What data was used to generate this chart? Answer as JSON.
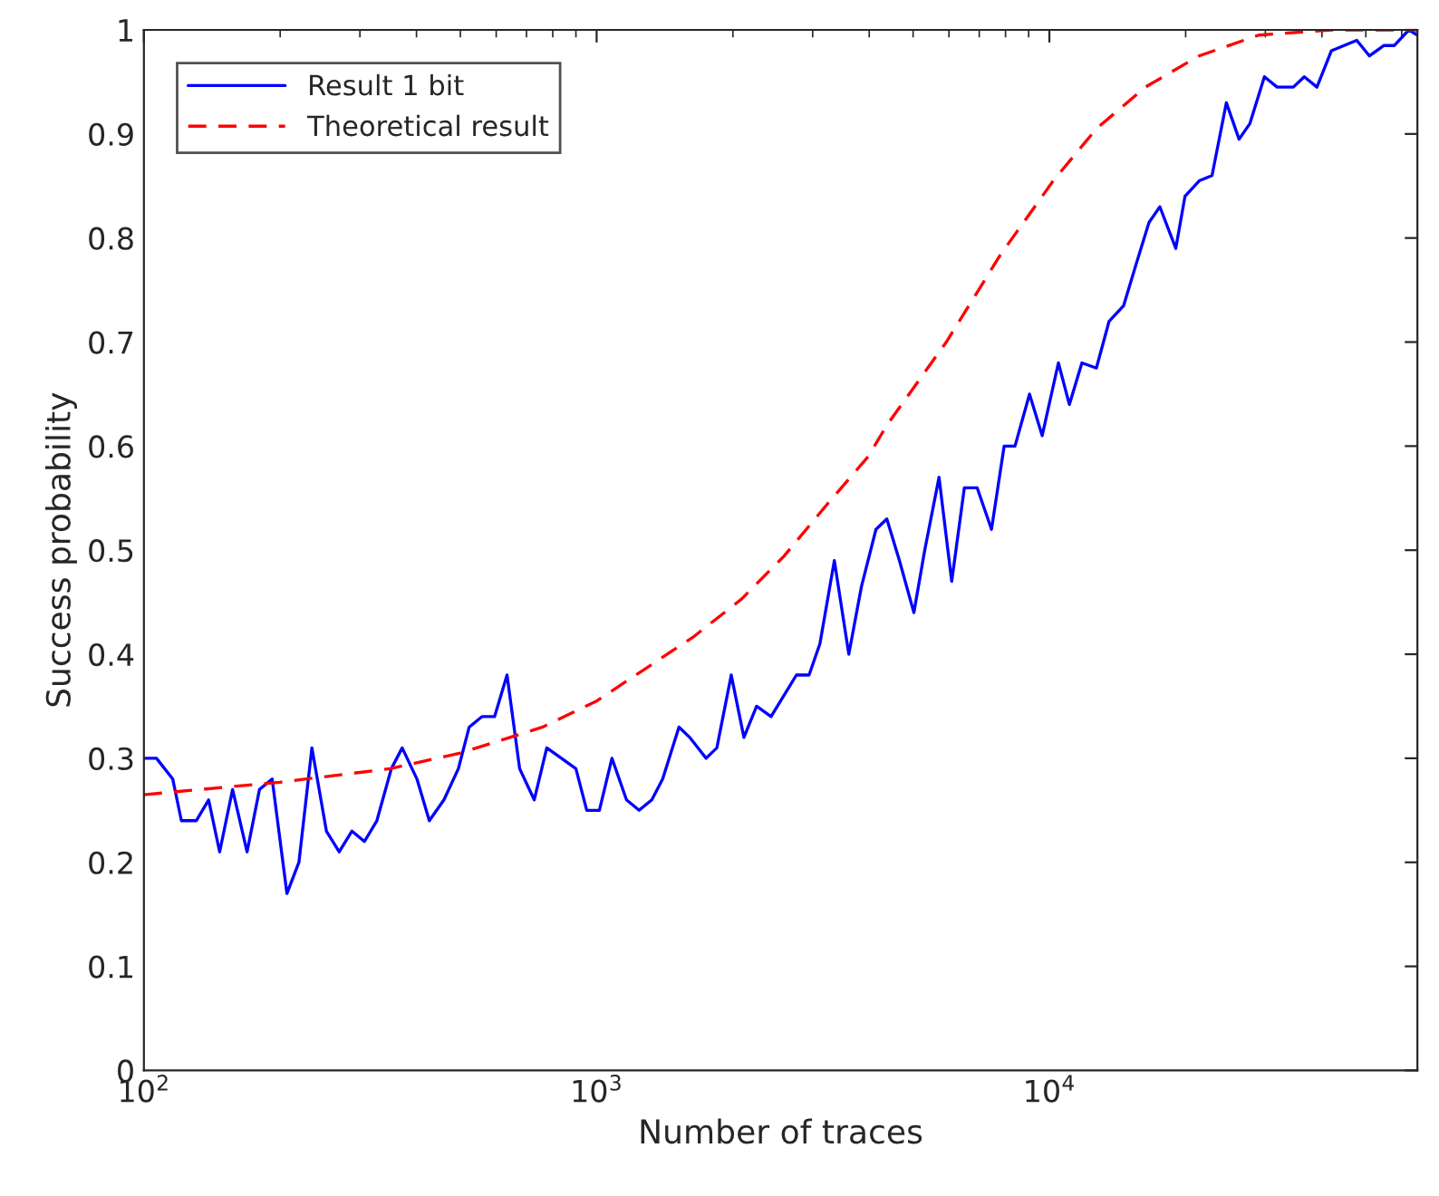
{
  "chart_data": {
    "type": "line",
    "xlabel": "Number of traces",
    "ylabel": "Success probability",
    "log": "x",
    "grid": false,
    "legend": "top left",
    "marker": "none",
    "xlim": [
      100,
      65000
    ],
    "xticks": [
      {
        "value": 100,
        "label": "10$^{2}$"
      },
      {
        "value": 1000,
        "label": "10$^{3}$"
      },
      {
        "value": 10000,
        "label": "10$^{4}$"
      }
    ],
    "ylim": [
      0,
      1
    ],
    "yticks": [
      0,
      0.1,
      0.2,
      0.3,
      0.4,
      0.5,
      0.6,
      0.7,
      0.8,
      0.9,
      1
    ],
    "series": [
      {
        "name": "Result 1 bit",
        "color": "#0000ff",
        "line_style": "solid",
        "x": [
          100,
          106.6,
          115.8,
          121,
          130.5,
          139,
          147,
          157,
          169,
          180,
          192,
          207,
          220,
          235,
          253,
          270,
          288,
          307,
          327,
          352,
          372,
          401,
          427,
          460,
          495,
          523,
          558,
          595,
          634,
          676,
          728,
          776,
          836,
          900,
          951,
          1014,
          1081,
          1164,
          1241,
          1324,
          1399,
          1520,
          1606,
          1745,
          1843,
          1983,
          2115,
          2256,
          2428,
          2590,
          2762,
          2946,
          3113,
          3350,
          3606,
          3845,
          4140,
          4375,
          4665,
          5020,
          5305,
          5705,
          6085,
          6490,
          6925,
          7450,
          7945,
          8395,
          9040,
          9640,
          10470,
          11070,
          11800,
          12700,
          13550,
          14590,
          15550,
          16600,
          17540,
          19020,
          19930,
          21430,
          22870,
          24600,
          26240,
          27730,
          29850,
          31840,
          34590,
          36560,
          38990,
          41980,
          44770,
          47750,
          50930,
          54830,
          57810,
          62230,
          65000
        ],
        "values": [
          0.3,
          0.3,
          0.28,
          0.24,
          0.24,
          0.26,
          0.21,
          0.27,
          0.21,
          0.27,
          0.28,
          0.17,
          0.2,
          0.31,
          0.23,
          0.21,
          0.23,
          0.22,
          0.24,
          0.29,
          0.31,
          0.28,
          0.24,
          0.26,
          0.29,
          0.33,
          0.34,
          0.34,
          0.38,
          0.29,
          0.26,
          0.31,
          0.3,
          0.29,
          0.25,
          0.25,
          0.3,
          0.26,
          0.25,
          0.26,
          0.28,
          0.33,
          0.32,
          0.3,
          0.31,
          0.38,
          0.32,
          0.35,
          0.34,
          0.36,
          0.38,
          0.38,
          0.41,
          0.49,
          0.4,
          0.465,
          0.52,
          0.53,
          0.49,
          0.44,
          0.5,
          0.57,
          0.47,
          0.56,
          0.56,
          0.52,
          0.6,
          0.6,
          0.65,
          0.61,
          0.68,
          0.64,
          0.68,
          0.675,
          0.72,
          0.735,
          0.775,
          0.815,
          0.83,
          0.79,
          0.84,
          0.855,
          0.86,
          0.93,
          0.895,
          0.91,
          0.955,
          0.945,
          0.945,
          0.955,
          0.945,
          0.98,
          0.985,
          0.99,
          0.975,
          0.985,
          0.985,
          1.0,
          0.995
        ]
      },
      {
        "name": "Theoretical result",
        "color": "#ff0000",
        "line_style": "dashed",
        "x": [
          100,
          200,
          350,
          500,
          760,
          1000,
          1270,
          1640,
          2090,
          2590,
          3200,
          3980,
          4375,
          5920,
          7800,
          10200,
          12700,
          16300,
          21400,
          29000,
          42000,
          65000
        ],
        "values": [
          0.265,
          0.277,
          0.29,
          0.305,
          0.33,
          0.355,
          0.385,
          0.417,
          0.453,
          0.494,
          0.542,
          0.59,
          0.62,
          0.7,
          0.784,
          0.855,
          0.905,
          0.945,
          0.975,
          0.995,
          1.0,
          1.0
        ]
      }
    ]
  }
}
